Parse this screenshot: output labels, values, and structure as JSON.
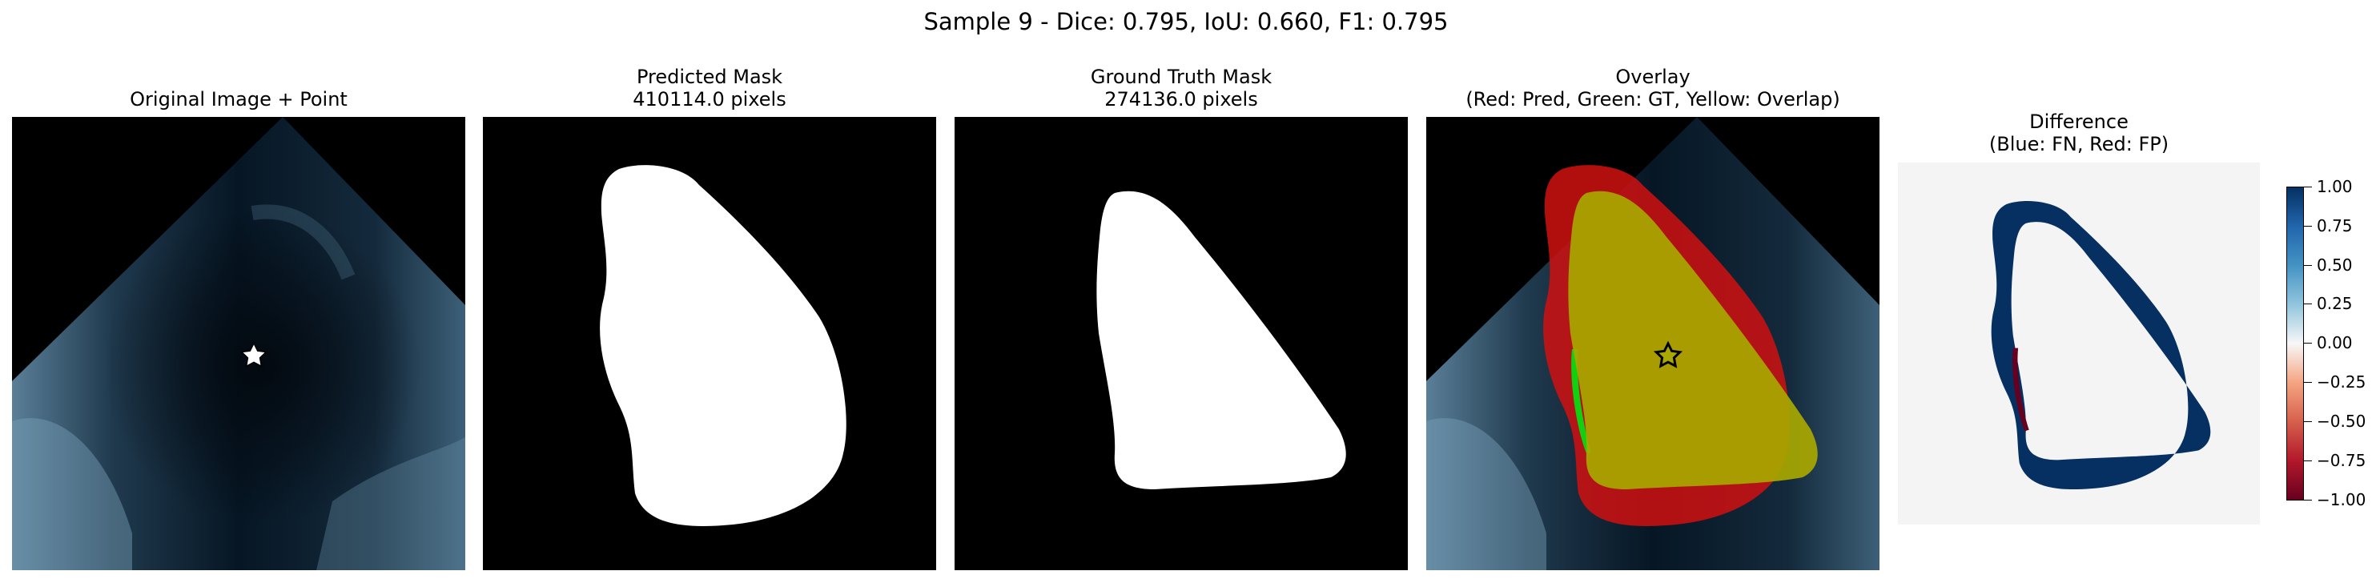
{
  "figure": {
    "title": "Sample 9 - Dice: 0.795, IoU: 0.660, F1: 0.795"
  },
  "panels": [
    {
      "title_line1": "Original Image + Point",
      "title_line2": ""
    },
    {
      "title_line1": "Predicted Mask",
      "title_line2": "410114.0 pixels"
    },
    {
      "title_line1": "Ground Truth Mask",
      "title_line2": "274136.0 pixels"
    },
    {
      "title_line1": "Overlay",
      "title_line2": "(Red: Pred, Green: GT, Yellow: Overlap)"
    },
    {
      "title_line1": "Difference",
      "title_line2": "(Blue: FN, Red: FP)"
    }
  ],
  "colorbar": {
    "colormap": "RdBu",
    "range": [
      -1.0,
      1.0
    ],
    "ticks": [
      "1.00",
      "0.75",
      "0.50",
      "0.25",
      "0.00",
      "−0.25",
      "−0.50",
      "−0.75",
      "−1.00"
    ]
  },
  "colors": {
    "pred_overlay": "#d01010",
    "gt_overlay": "#10d010",
    "overlap_overlay": "#a8a800",
    "fn_blue": "#053061",
    "fp_red": "#67001f",
    "difference_background": "#f4f4f4"
  }
}
